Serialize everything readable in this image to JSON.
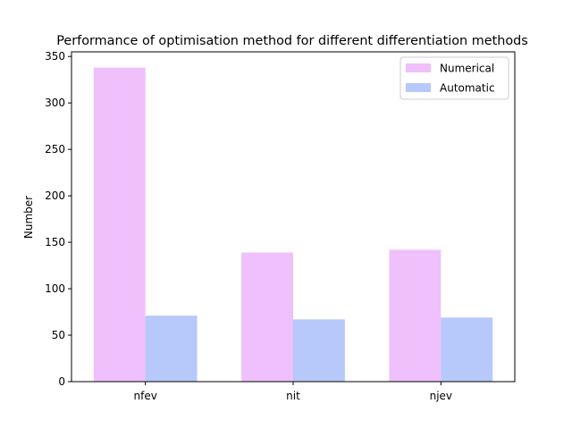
{
  "chart_data": {
    "type": "bar",
    "title": "Performance of optimisation method for different differentiation methods",
    "xlabel": "",
    "ylabel": "Number",
    "categories": [
      "nfev",
      "nit",
      "njev"
    ],
    "series": [
      {
        "name": "Numerical",
        "values": [
          338,
          139,
          142
        ],
        "color": "#efc0fc"
      },
      {
        "name": "Automatic",
        "values": [
          71,
          67,
          69
        ],
        "color": "#b7c8fa"
      }
    ],
    "ylim": [
      0,
      355
    ],
    "yticks": [
      0,
      50,
      100,
      150,
      200,
      250,
      300,
      350
    ],
    "grid": false,
    "legend_position": "top-right"
  }
}
